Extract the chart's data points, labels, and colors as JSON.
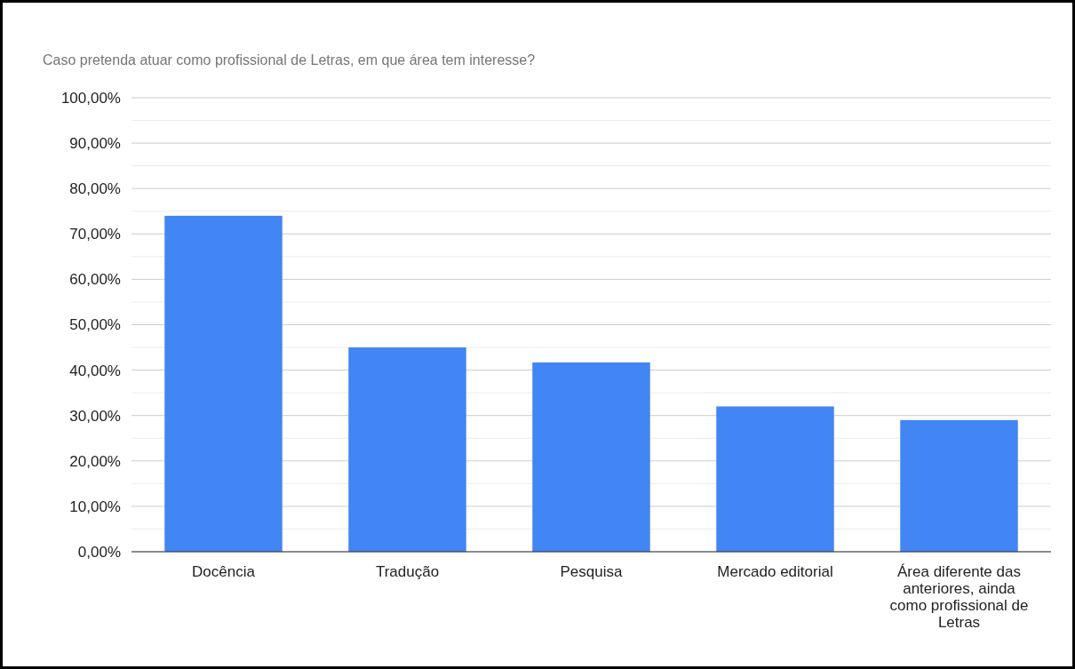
{
  "chart_data": {
    "type": "bar",
    "title": "Caso pretenda atuar como profissional de Letras, em que área tem interesse?",
    "categories": [
      "Docência",
      "Tradução",
      "Pesquisa",
      "Mercado editorial",
      "Área diferente das anteriores, ainda como profissional de Letras"
    ],
    "values": [
      74,
      45,
      41.7,
      32,
      29
    ],
    "color": "#4285f4",
    "ylim": [
      0,
      100
    ],
    "yticks": [
      {
        "value": 0,
        "label": "0,00%"
      },
      {
        "value": 5,
        "label": null
      },
      {
        "value": 10,
        "label": "10,00%"
      },
      {
        "value": 15,
        "label": null
      },
      {
        "value": 20,
        "label": "20,00%"
      },
      {
        "value": 25,
        "label": null
      },
      {
        "value": 30,
        "label": "30,00%"
      },
      {
        "value": 35,
        "label": null
      },
      {
        "value": 40,
        "label": "40,00%"
      },
      {
        "value": 45,
        "label": null
      },
      {
        "value": 50,
        "label": "50,00%"
      },
      {
        "value": 55,
        "label": null
      },
      {
        "value": 60,
        "label": "60,00%"
      },
      {
        "value": 65,
        "label": null
      },
      {
        "value": 70,
        "label": "70,00%"
      },
      {
        "value": 75,
        "label": null
      },
      {
        "value": 80,
        "label": "80,00%"
      },
      {
        "value": 85,
        "label": null
      },
      {
        "value": 90,
        "label": "90,00%"
      },
      {
        "value": 95,
        "label": null
      },
      {
        "value": 100,
        "label": "100,00%"
      }
    ],
    "grid": "y"
  }
}
